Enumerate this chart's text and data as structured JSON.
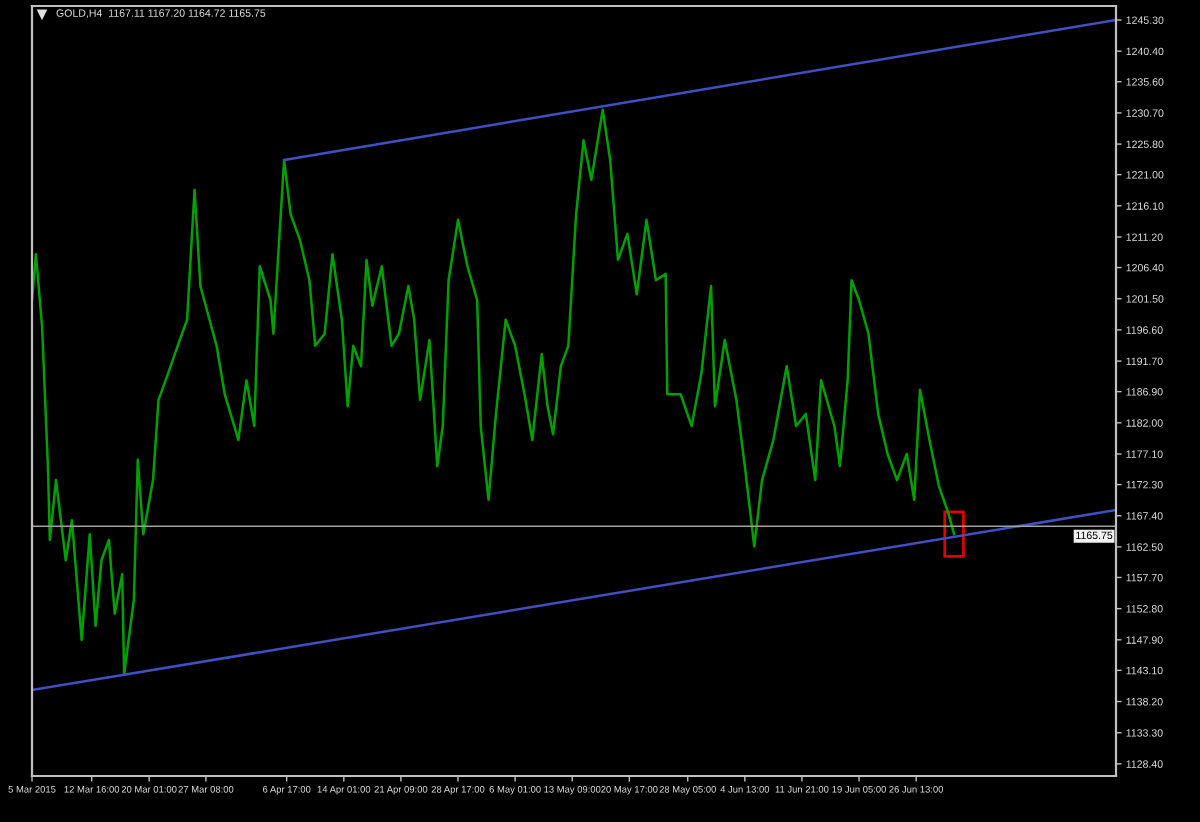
{
  "chart_data": {
    "type": "line",
    "title": "GOLD,H4  1167.11 1167.20 1164.72 1165.75",
    "xlim": [
      "2015-03-05T00:00",
      "2015-07-22T05:00"
    ],
    "ylim": [
      1126.5,
      1247.5
    ],
    "xticks": [
      {
        "value": "2015-03-05T00:00",
        "label": "5 Mar 2015"
      },
      {
        "value": "2015-03-12T16:00",
        "label": "12 Mar 16:00"
      },
      {
        "value": "2015-03-20T01:00",
        "label": "20 Mar 01:00"
      },
      {
        "value": "2015-03-27T08:00",
        "label": "27 Mar 08:00"
      },
      {
        "value": "2015-04-06T17:00",
        "label": "6 Apr 17:00"
      },
      {
        "value": "2015-04-14T01:00",
        "label": "14 Apr 01:00"
      },
      {
        "value": "2015-04-21T09:00",
        "label": "21 Apr 09:00"
      },
      {
        "value": "2015-04-28T17:00",
        "label": "28 Apr 17:00"
      },
      {
        "value": "2015-05-06T01:00",
        "label": "6 May 01:00"
      },
      {
        "value": "2015-05-13T09:00",
        "label": "13 May 09:00"
      },
      {
        "value": "2015-05-20T17:00",
        "label": "20 May 17:00"
      },
      {
        "value": "2015-05-28T05:00",
        "label": "28 May 05:00"
      },
      {
        "value": "2015-06-04T13:00",
        "label": "4 Jun 13:00"
      },
      {
        "value": "2015-06-11T21:00",
        "label": "11 Jun 21:00"
      },
      {
        "value": "2015-06-19T05:00",
        "label": "19 Jun 05:00"
      },
      {
        "value": "2015-06-26T13:00",
        "label": "26 Jun 13:00"
      }
    ],
    "yticks": [
      {
        "value": 1245.3,
        "label": "1245.30"
      },
      {
        "value": 1240.4,
        "label": "1240.40"
      },
      {
        "value": 1235.6,
        "label": "1235.60"
      },
      {
        "value": 1230.7,
        "label": "1230.70"
      },
      {
        "value": 1225.8,
        "label": "1225.80"
      },
      {
        "value": 1221.0,
        "label": "1221.00"
      },
      {
        "value": 1216.1,
        "label": "1216.10"
      },
      {
        "value": 1211.2,
        "label": "1211.20"
      },
      {
        "value": 1206.4,
        "label": "1206.40"
      },
      {
        "value": 1201.5,
        "label": "1201.50"
      },
      {
        "value": 1196.6,
        "label": "1196.60"
      },
      {
        "value": 1191.7,
        "label": "1191.70"
      },
      {
        "value": 1186.9,
        "label": "1186.90"
      },
      {
        "value": 1182.0,
        "label": "1182.00"
      },
      {
        "value": 1177.1,
        "label": "1177.10"
      },
      {
        "value": 1172.3,
        "label": "1172.30"
      },
      {
        "value": 1167.4,
        "label": "1167.40"
      },
      {
        "value": 1162.5,
        "label": "1162.50"
      },
      {
        "value": 1157.7,
        "label": "1157.70"
      },
      {
        "value": 1152.8,
        "label": "1152.80"
      },
      {
        "value": 1147.9,
        "label": "1147.90"
      },
      {
        "value": 1143.1,
        "label": "1143.10"
      },
      {
        "value": 1138.2,
        "label": "1138.20"
      },
      {
        "value": 1133.3,
        "label": "1133.30"
      },
      {
        "value": 1128.4,
        "label": "1128.40"
      }
    ],
    "grid": false,
    "series": [
      {
        "color": "#00a000",
        "x": [
          "2015-03-05T00:00",
          "2015-03-05T12:00",
          "2015-03-06T07:00",
          "2015-03-07T01:00",
          "2015-03-07T07:00",
          "2015-03-08T02:00",
          "2015-03-09T08:00",
          "2015-03-10T03:00",
          "2015-03-11T09:00",
          "2015-03-12T10:00",
          "2015-03-13T04:00",
          "2015-03-13T22:00",
          "2015-03-14T21:00",
          "2015-03-15T15:00",
          "2015-03-16T14:00",
          "2015-03-16T20:00",
          "2015-03-18T02:00",
          "2015-03-18T14:00",
          "2015-03-19T07:00",
          "2015-03-20T13:00",
          "2015-03-21T06:00",
          "2015-03-22T11:00",
          "2015-03-23T17:00",
          "2015-03-24T22:00",
          "2015-03-25T21:00",
          "2015-03-26T15:00",
          "2015-03-28T17:00",
          "2015-03-29T18:00",
          "2015-03-31T12:00",
          "2015-04-01T13:00",
          "2015-04-02T13:00",
          "2015-04-03T06:00",
          "2015-04-04T15:00",
          "2015-04-05T00:00",
          "2015-04-06T09:00",
          "2015-04-07T05:00",
          "2015-04-08T10:00",
          "2015-04-09T15:00",
          "2015-04-10T09:00",
          "2015-04-11T14:00",
          "2015-04-12T14:00",
          "2015-04-13T19:00",
          "2015-04-14T13:00",
          "2015-04-15T06:00",
          "2015-04-16T06:00",
          "2015-04-16T23:00",
          "2015-04-17T17:00",
          "2015-04-18T22:00",
          "2015-04-20T04:00",
          "2015-04-21T03:00",
          "2015-04-22T08:00",
          "2015-04-23T02:00",
          "2015-04-23T20:00",
          "2015-04-25T01:00",
          "2015-04-26T01:00",
          "2015-04-26T18:00",
          "2015-04-27T12:00",
          "2015-04-28T17:00",
          "2015-04-29T22:00",
          "2015-05-01T04:00",
          "2015-05-01T15:00",
          "2015-05-02T15:00",
          "2015-05-03T14:00",
          "2015-05-04T20:00",
          "2015-05-06T01:00",
          "2015-05-07T06:00",
          "2015-05-08T06:00",
          "2015-05-09T11:00",
          "2015-05-10T05:00",
          "2015-05-10T22:00",
          "2015-05-11T22:00",
          "2015-05-12T21:00",
          "2015-05-13T21:00",
          "2015-05-14T20:00",
          "2015-05-15T20:00",
          "2015-05-17T07:00",
          "2015-05-18T06:00",
          "2015-05-19T06:00",
          "2015-05-20T11:00",
          "2015-05-21T16:00",
          "2015-05-22T22:00",
          "2015-05-24T03:00",
          "2015-05-25T09:00",
          "2015-05-25T14:00",
          "2015-05-27T07:00",
          "2015-05-28T17:00",
          "2015-05-29T23:00",
          "2015-05-31T05:00",
          "2015-05-31T17:00",
          "2015-06-01T23:00",
          "2015-06-03T11:00",
          "2015-06-04T13:00",
          "2015-06-05T18:00",
          "2015-06-06T18:00",
          "2015-06-08T05:00",
          "2015-06-09T22:00",
          "2015-06-11T03:00",
          "2015-06-12T09:00",
          "2015-06-13T14:00",
          "2015-06-14T08:00",
          "2015-06-16T01:00",
          "2015-06-16T18:00",
          "2015-06-17T18:00",
          "2015-06-18T06:00",
          "2015-06-19T05:00",
          "2015-06-20T10:00",
          "2015-06-21T16:00",
          "2015-06-22T21:00",
          "2015-06-24T02:00",
          "2015-06-25T08:00",
          "2015-06-26T07:00",
          "2015-06-27T01:00",
          "2015-06-28T06:00",
          "2015-06-29T11:00",
          "2015-06-30T17:00",
          "2015-07-01T10:00"
        ],
        "values": [
          1201.3,
          1208.5,
          1197.2,
          1175.2,
          1163.6,
          1173.0,
          1160.4,
          1166.7,
          1147.9,
          1164.5,
          1150.1,
          1160.4,
          1163.6,
          1152.0,
          1158.2,
          1142.5,
          1154.2,
          1176.2,
          1164.5,
          1173.0,
          1185.6,
          1189.7,
          1194.1,
          1198.2,
          1218.6,
          1203.5,
          1194.1,
          1186.5,
          1179.3,
          1188.7,
          1181.5,
          1206.6,
          1201.3,
          1196.0,
          1223.3,
          1214.8,
          1210.7,
          1204.4,
          1194.1,
          1196.0,
          1208.5,
          1198.2,
          1184.6,
          1194.1,
          1190.9,
          1207.6,
          1200.4,
          1206.6,
          1194.1,
          1196.0,
          1203.5,
          1198.2,
          1185.6,
          1195.0,
          1175.2,
          1181.5,
          1204.4,
          1213.9,
          1206.6,
          1201.3,
          1181.5,
          1169.9,
          1183.4,
          1198.2,
          1194.1,
          1186.5,
          1179.3,
          1192.8,
          1184.6,
          1180.2,
          1190.9,
          1194.1,
          1214.8,
          1226.4,
          1220.2,
          1231.2,
          1223.3,
          1207.6,
          1211.7,
          1202.2,
          1213.9,
          1204.4,
          1205.4,
          1186.5,
          1186.5,
          1181.5,
          1189.7,
          1203.5,
          1184.6,
          1195.0,
          1185.6,
          1175.2,
          1162.6,
          1173.0,
          1179.3,
          1190.9,
          1181.5,
          1183.4,
          1173.0,
          1188.7,
          1181.5,
          1175.2,
          1188.7,
          1204.4,
          1201.3,
          1196.0,
          1183.4,
          1177.1,
          1173.0,
          1177.1,
          1169.9,
          1187.2,
          1179.3,
          1172.1,
          1167.7,
          1164.5
        ]
      },
      {
        "color": "#4050c0",
        "x": [
          "2015-04-06T09:00",
          "2015-07-22T05:00"
        ],
        "values": [
          1223.3,
          1245.3
        ]
      },
      {
        "color": "#4050c0",
        "x": [
          "2015-03-05T00:00",
          "2015-07-22T05:00"
        ],
        "values": [
          1140.0,
          1168.3
        ]
      }
    ],
    "ref_lines": [
      {
        "axis": "y",
        "value": 1165.75,
        "label": "1165.75",
        "color": "#a0a0a0"
      }
    ]
  }
}
